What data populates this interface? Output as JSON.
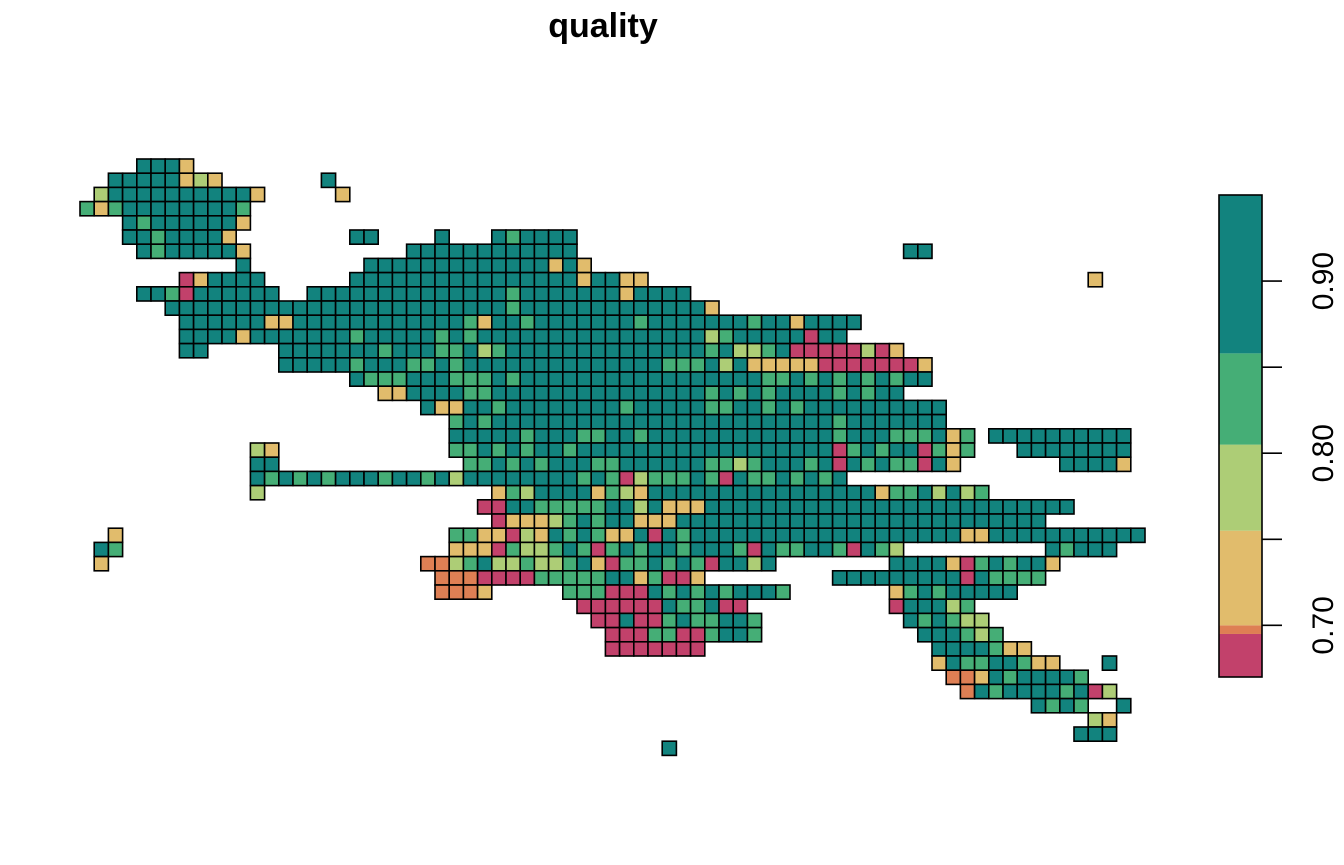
{
  "chart_data": {
    "type": "heatmap",
    "title": "quality",
    "xlabel": "",
    "ylabel": "",
    "legend": {
      "placement": "right",
      "orientation": "vertical",
      "range": [
        0.67,
        0.95
      ],
      "ticks": [
        0.7,
        0.75,
        0.8,
        0.85,
        0.9
      ],
      "tick_labels": [
        "0.70",
        "",
        "0.80",
        "",
        "0.90"
      ],
      "bins": [
        {
          "from": 0.67,
          "to": 0.695,
          "color": "#C2416B"
        },
        {
          "from": 0.695,
          "to": 0.7,
          "color": "#DE7F54"
        },
        {
          "from": 0.7,
          "to": 0.755,
          "color": "#E1BC6C"
        },
        {
          "from": 0.755,
          "to": 0.805,
          "color": "#ADCD76"
        },
        {
          "from": 0.805,
          "to": 0.858,
          "color": "#45AE76"
        },
        {
          "from": 0.858,
          "to": 0.95,
          "color": "#12837E"
        }
      ]
    },
    "value_codes": {
      "r": 0.68,
      "o": 0.697,
      "y": 0.73,
      "l": 0.78,
      "g": 0.83,
      "t": 0.9
    },
    "grid_origin": [
      80,
      159
    ],
    "cell_size": 14.2,
    "grid_rows": [
      [
        [
          4,
          "ttty"
        ]
      ],
      [
        [
          2,
          "tttttyly"
        ],
        [
          17,
          "t"
        ]
      ],
      [
        [
          1,
          "ltttttttttty"
        ],
        [
          18,
          "y"
        ]
      ],
      [
        [
          0,
          "gygttttttttg"
        ]
      ],
      [
        [
          3,
          "tgtttttty"
        ]
      ],
      [
        [
          3,
          "ttgtttty"
        ],
        [
          19,
          "tt"
        ],
        [
          25,
          "t"
        ],
        [
          29,
          "tgtttt"
        ]
      ],
      [
        [
          4,
          "tgttttty"
        ],
        [
          23,
          "tttttttttttt"
        ],
        [
          58,
          "tt"
        ]
      ],
      [
        [
          11,
          "t"
        ],
        [
          20,
          "tttttttttttttyty"
        ]
      ],
      [
        [
          7,
          "rytttt"
        ],
        [
          19,
          "ttttttttttttttttyttyy"
        ],
        [
          71,
          "y"
        ]
      ],
      [
        [
          4,
          "ttgrtttttt"
        ],
        [
          16,
          "ttttttttttttttgtttttttytttt"
        ]
      ],
      [
        [
          6,
          "ttttttttt"
        ],
        [
          15,
          "tttttttttttttttgttttttttttttty"
        ]
      ],
      [
        [
          7,
          "ttttttyyttttttttttttgyttgtttttttgtttttttgttytttt"
        ]
      ],
      [
        [
          7,
          "tttt"
        ],
        [
          11,
          "ytttttttgtttttgtgttttttttttttttttlgtttttrtt"
        ]
      ],
      [
        [
          7,
          "tt"
        ],
        [
          14,
          "tttttttgtttggtlgttttttttttttttgtllgtrrrrrlry"
        ]
      ],
      [
        [
          14,
          "tttttgtttggtgttttttttttttttgggtltyyyyyrrrrrrry"
        ]
      ],
      [
        [
          19,
          "tgggtttgggtgtttttttttttttttttggtgtgtgtgtt"
        ]
      ],
      [
        [
          21,
          "yyttttggtttttttttttttttgtgtgttttgtgtt"
        ]
      ],
      [
        [
          24,
          "tyyttgttttttttgtttttggttgtgtttttttttt"
        ]
      ],
      [
        [
          26,
          "gtgttttttttttttttttttttttttgttttttt"
        ]
      ],
      [
        [
          26,
          "tttttgtttggttgtttttttttttttgtttgggtyg"
        ],
        [
          62,
          "g"
        ],
        [
          64,
          "tttttttttt"
        ]
      ],
      [
        [
          12,
          "ly"
        ],
        [
          26,
          "ggtgtgttgttttttttttttttttttrgtgttrgyg"
        ],
        [
          66,
          "tttttttt"
        ]
      ],
      [
        [
          12,
          "tt"
        ],
        [
          27,
          "ggtgtgtttggttttttgglgtttgtrtgtggrty"
        ],
        [
          69,
          "tttty"
        ]
      ],
      [
        [
          12,
          "tgtgtgtttgttgtlttttttttgtgrlgggtgrtggtgtgt"
        ]
      ],
      [
        [
          12,
          "l"
        ],
        [
          29,
          "yglttttyglyttttttttttttttttyggtltlg"
        ]
      ],
      [
        [
          28,
          "rrttgggggttltyyytttttttttttttttttttttttttt"
        ]
      ],
      [
        [
          29,
          "ryyylgtgttyyytttttttttttttttttttttttttt"
        ]
      ],
      [
        [
          2,
          "y"
        ],
        [
          26,
          "ggyyrlytgtgyytrtgtttttttttttttttttttyy"
        ],
        [
          64,
          "ttttttttttt"
        ]
      ],
      [
        [
          1,
          "tg"
        ],
        [
          26,
          "yyyrgllgtgrgtgttgtttgrtggttgrtgl"
        ],
        [
          68,
          "tgttt"
        ]
      ],
      [
        [
          1,
          "y"
        ],
        [
          24,
          "oolgtllgllgtyrggtgtgrttlt"
        ],
        [
          57,
          "tttty"
        ],
        [
          62,
          "rgtgtty"
        ]
      ],
      [
        [
          25,
          "ooorrrrgggggttygrry"
        ],
        [
          53,
          "tttttttttrtgggg"
        ]
      ],
      [
        [
          25,
          "oooy"
        ],
        [
          34,
          "gggrrrtgtgtgtttg"
        ],
        [
          57,
          "ygtgttttt"
        ]
      ],
      [
        [
          35,
          "rrrrrrtggtrr"
        ],
        [
          57,
          "rtttlg"
        ]
      ],
      [
        [
          36,
          "rrtrrgtggttg"
        ],
        [
          58,
          "tgtgll"
        ]
      ],
      [
        [
          37,
          "rrrggrrgttg"
        ],
        [
          59,
          "tttglg"
        ]
      ],
      [
        [
          37,
          "rrrrrrr"
        ],
        [
          60,
          "ttttgyy"
        ]
      ],
      [
        [
          60,
          "ytggttgyy"
        ],
        [
          72,
          "t"
        ]
      ],
      [
        [
          61,
          "ooytgttttg"
        ]
      ],
      [
        [
          62,
          "otgttttgtrl"
        ]
      ],
      [
        [
          67,
          "tgtg"
        ],
        [
          73,
          "t"
        ]
      ],
      [
        [
          71,
          "ly"
        ]
      ],
      [
        [
          70,
          "ttt"
        ]
      ],
      [
        [
          41,
          "t"
        ]
      ]
    ]
  }
}
